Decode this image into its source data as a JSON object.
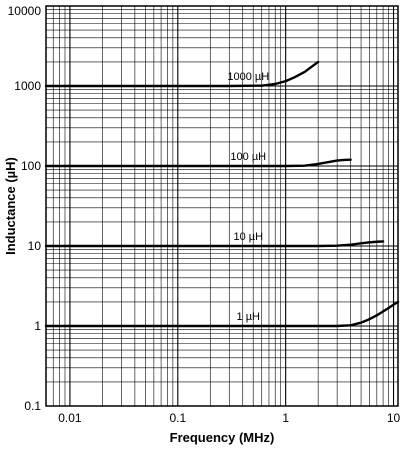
{
  "chart_data": {
    "type": "line",
    "title": "",
    "xlabel": "Frequency (MHz)",
    "ylabel": "Inductance (µH)",
    "x_scale": "log",
    "y_scale": "log",
    "xlim": [
      0.006,
      11
    ],
    "ylim": [
      0.1,
      10000
    ],
    "grid": true,
    "x_tick_labels": [
      "0.01",
      "0.1",
      "1",
      "10"
    ],
    "x_tick_values": [
      0.01,
      0.1,
      1,
      10
    ],
    "y_tick_labels": [
      "0.1",
      "1",
      "10",
      "100",
      "1000",
      "10000"
    ],
    "y_tick_values": [
      0.1,
      1,
      10,
      100,
      1000,
      10000
    ],
    "series": [
      {
        "name": "1000 µH",
        "x": [
          0.006,
          0.3,
          0.6,
          0.8,
          1.0,
          1.2,
          1.5,
          1.8,
          2.0
        ],
        "y": [
          1000,
          1000,
          1010,
          1060,
          1150,
          1280,
          1500,
          1800,
          2000
        ]
      },
      {
        "name": "100 µH",
        "x": [
          0.006,
          1.0,
          1.5,
          2.0,
          2.5,
          3.0,
          3.5,
          4.0
        ],
        "y": [
          100,
          100,
          101,
          106,
          112,
          117,
          119,
          120
        ]
      },
      {
        "name": "10 µH",
        "x": [
          0.006,
          2.0,
          3.0,
          4.0,
          5.0,
          6.0,
          7.0,
          8.0
        ],
        "y": [
          10,
          10,
          10.1,
          10.4,
          10.8,
          11.1,
          11.3,
          11.4
        ]
      },
      {
        "name": "1 µH",
        "x": [
          0.006,
          3.0,
          4.0,
          5.0,
          6.0,
          7.0,
          8.0,
          9.0,
          10.0,
          11.0
        ],
        "y": [
          1,
          1,
          1.02,
          1.1,
          1.22,
          1.36,
          1.52,
          1.68,
          1.85,
          2.0
        ]
      }
    ]
  }
}
